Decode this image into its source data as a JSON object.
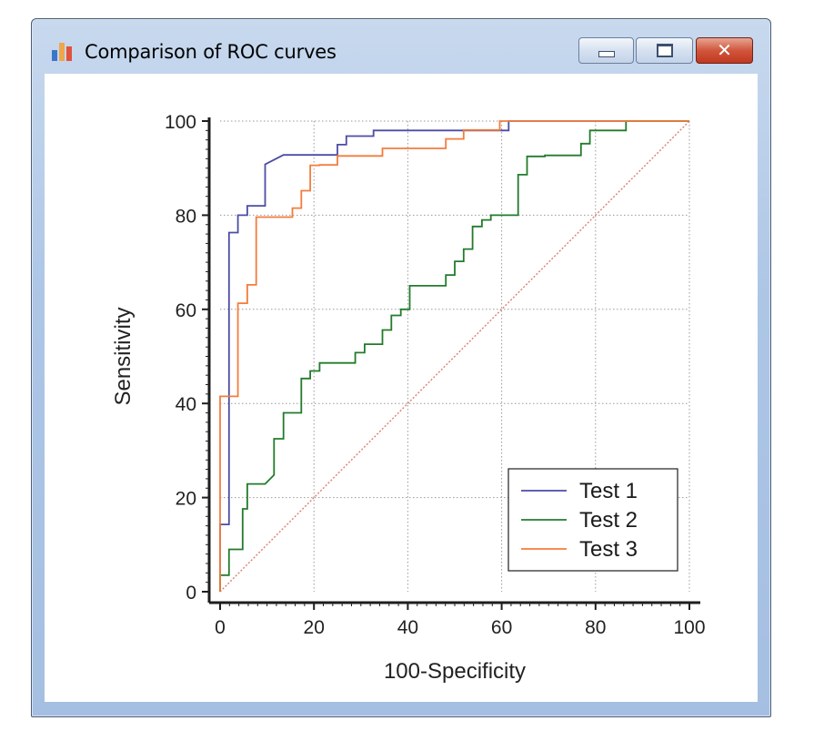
{
  "window": {
    "title": "Comparison of ROC curves",
    "icon": "bar-chart-icon",
    "controls": {
      "minimize": "minimize-icon",
      "maximize": "maximize-icon",
      "close": "close-icon"
    }
  },
  "chart_data": {
    "type": "line",
    "title": "",
    "xlabel": "100-Specificity",
    "ylabel": "Sensitivity",
    "xlim": [
      0,
      100
    ],
    "ylim": [
      0,
      100
    ],
    "xticks": [
      0,
      20,
      40,
      60,
      80,
      100
    ],
    "yticks": [
      0,
      20,
      40,
      60,
      80,
      100
    ],
    "grid": true,
    "legend_position": "bottom-right",
    "reference_line": {
      "name": "Diagonal",
      "x": [
        0,
        100
      ],
      "y": [
        0,
        100
      ],
      "color": "#d9816f"
    },
    "series": [
      {
        "name": "Test 1",
        "color": "#4c4ca6",
        "step": true,
        "x": [
          0,
          0,
          1.9,
          1.9,
          3.8,
          3.8,
          5.8,
          5.8,
          9.6,
          9.6,
          13.5,
          25,
          25,
          26.9,
          26.9,
          32.7,
          32.7,
          51.9,
          51.9,
          61.5,
          61.5,
          100
        ],
        "y": [
          0,
          14.3,
          14.3,
          76.3,
          76.3,
          80,
          80,
          82,
          82,
          90.8,
          92.8,
          92.8,
          95,
          95,
          96.8,
          96.8,
          98,
          98,
          98,
          98,
          100,
          100
        ]
      },
      {
        "name": "Test 2",
        "color": "#237b2b",
        "step": true,
        "x": [
          0,
          0,
          1.9,
          1.9,
          4.8,
          4.8,
          5.8,
          5.8,
          9.6,
          11.5,
          11.5,
          13.5,
          13.5,
          17.3,
          17.3,
          19.2,
          19.2,
          21.2,
          21.2,
          28.8,
          28.8,
          30.8,
          30.8,
          34.6,
          34.6,
          36.5,
          36.5,
          38.5,
          38.5,
          40.4,
          40.4,
          48.1,
          48.1,
          50,
          50,
          51.9,
          51.9,
          53.8,
          53.8,
          55.8,
          55.8,
          57.7,
          57.7,
          63.5,
          63.5,
          65.4,
          65.4,
          69.2,
          69.2,
          76.9,
          76.9,
          78.8,
          78.8,
          86.5,
          86.5,
          100
        ],
        "y": [
          0,
          3.5,
          3.5,
          9,
          9,
          17.6,
          17.6,
          22.9,
          22.9,
          24.8,
          32.5,
          32.5,
          38,
          38,
          45.3,
          45.3,
          46.9,
          46.9,
          48.6,
          48.6,
          50.8,
          50.8,
          52.6,
          52.6,
          55.6,
          55.6,
          58.7,
          58.7,
          60,
          60,
          65,
          65,
          67.3,
          67.3,
          70.2,
          70.2,
          72.8,
          72.8,
          77.6,
          77.6,
          79,
          79,
          80,
          80,
          88.6,
          88.6,
          92.5,
          92.5,
          92.7,
          92.7,
          95.2,
          95.2,
          98,
          98,
          100,
          100
        ]
      },
      {
        "name": "Test 3",
        "color": "#f47c3c",
        "step": true,
        "x": [
          0,
          0,
          0,
          3.8,
          3.8,
          5.8,
          5.8,
          7.7,
          7.7,
          9.6,
          9.6,
          15.4,
          15.4,
          17.3,
          17.3,
          19.2,
          19.2,
          21.2,
          21.2,
          25,
          25,
          34.6,
          34.6,
          42.3,
          42.3,
          48.1,
          48.1,
          51.9,
          51.9,
          59.6,
          59.6,
          100
        ],
        "y": [
          0,
          41.5,
          41.5,
          41.5,
          61.3,
          61.3,
          65.2,
          65.2,
          79.6,
          79.6,
          79.6,
          79.6,
          81.5,
          81.5,
          85.2,
          85.2,
          90.6,
          90.6,
          90.7,
          90.7,
          92.6,
          92.6,
          94.2,
          94.2,
          94.2,
          94.2,
          96.2,
          96.2,
          98.1,
          98.1,
          100,
          100
        ]
      }
    ]
  }
}
